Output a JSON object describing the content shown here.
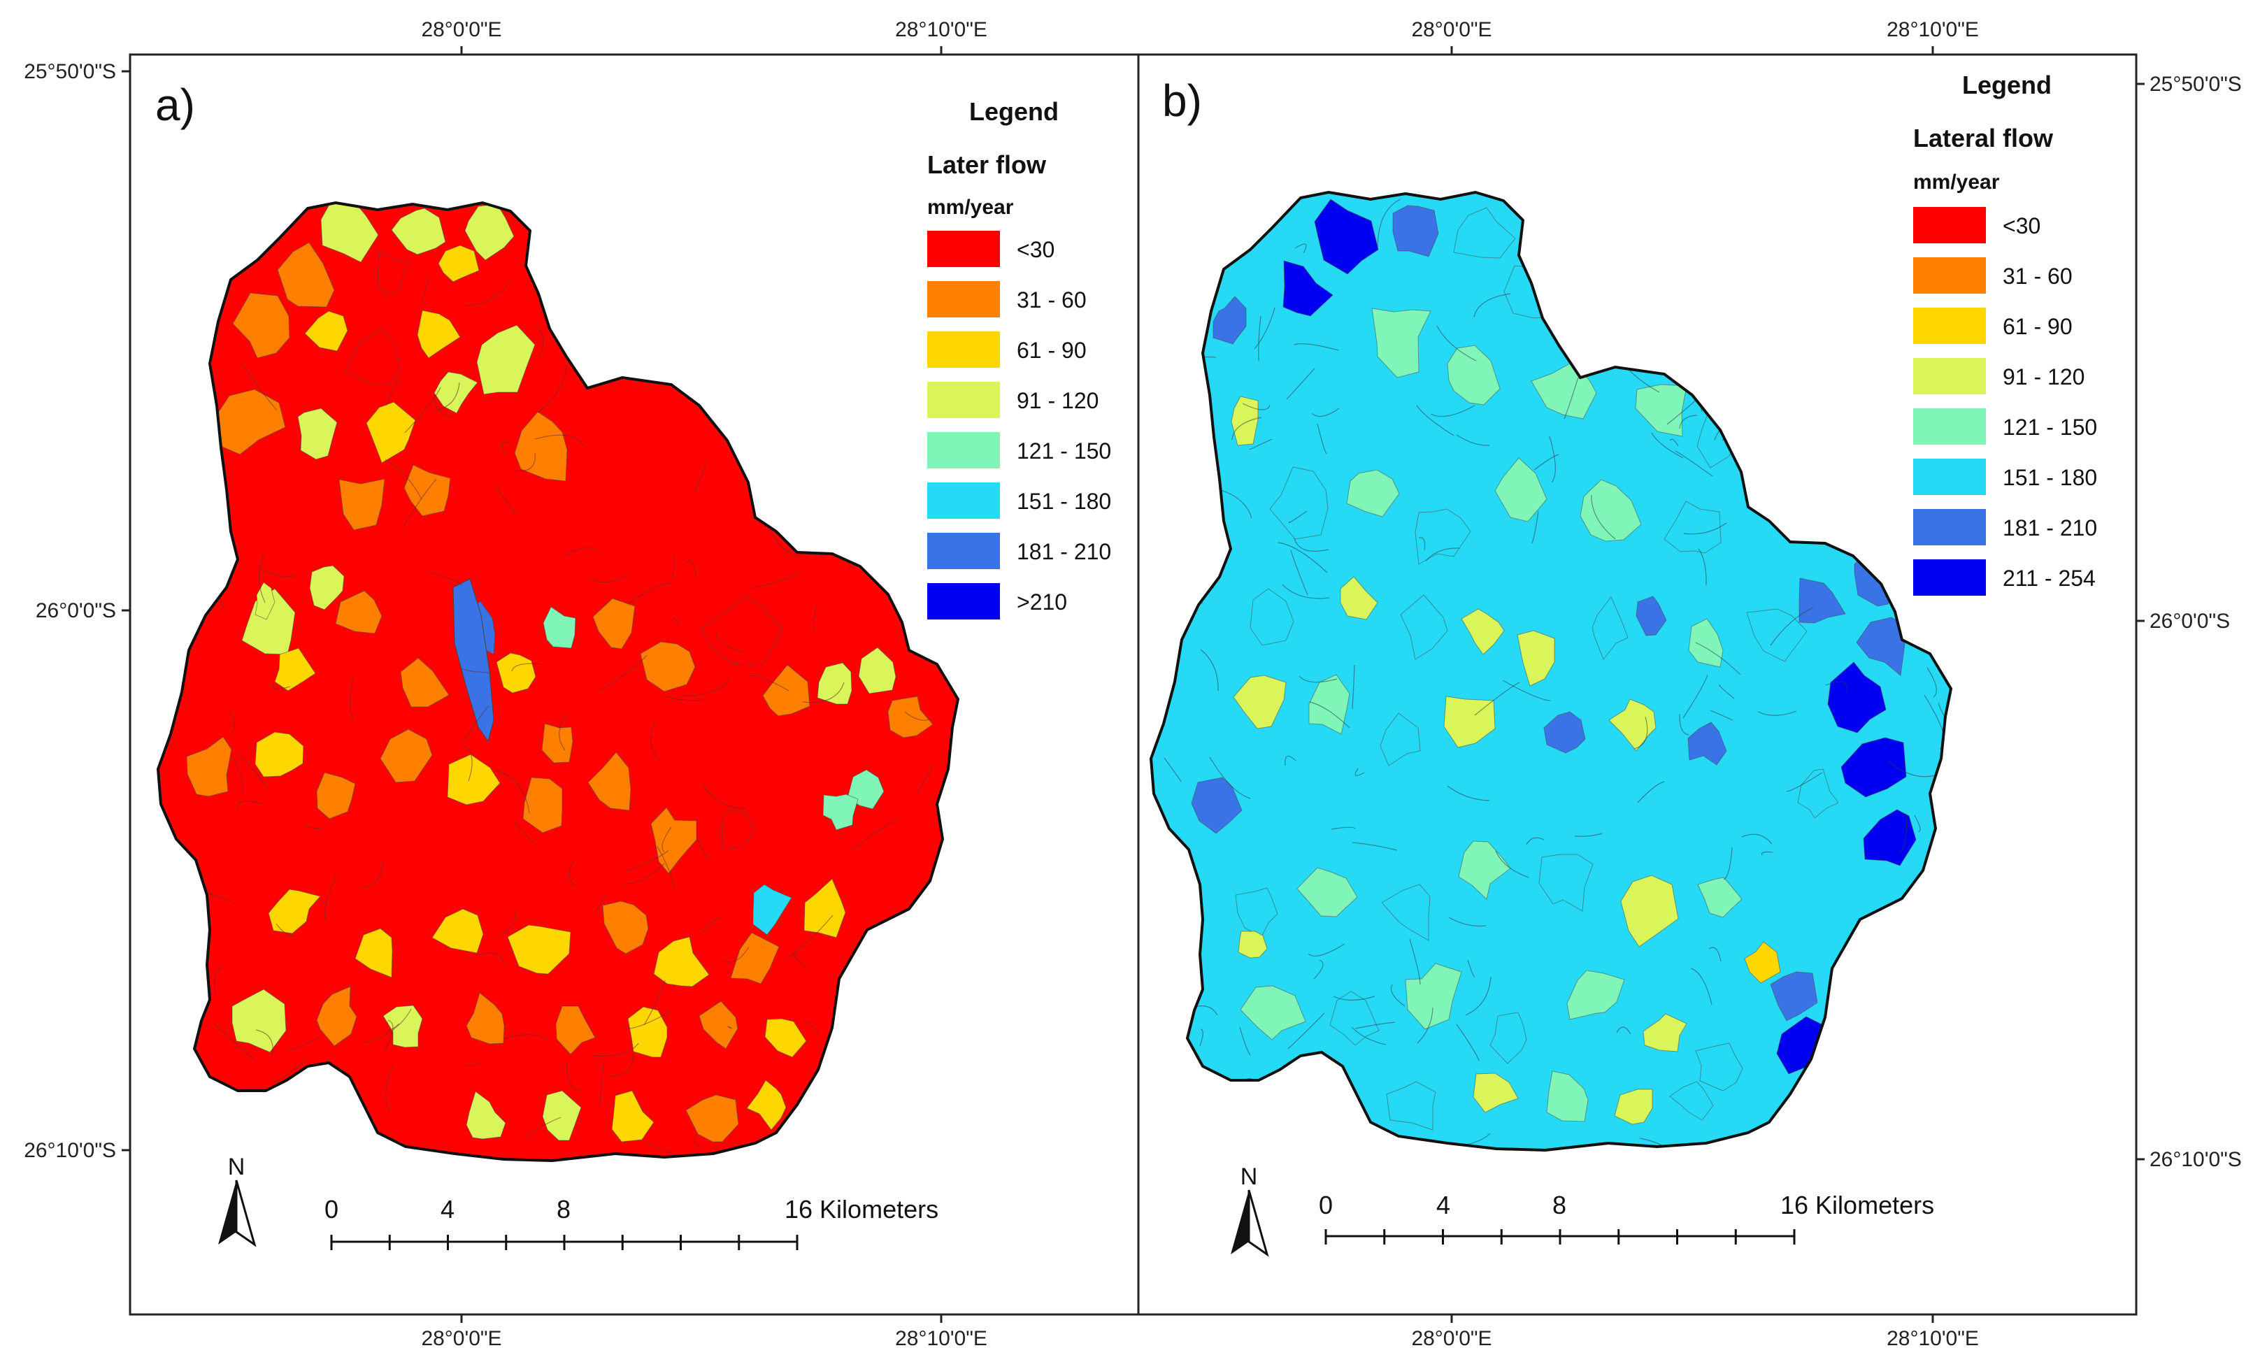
{
  "colors": {
    "class1": "#ff0000",
    "class2": "#ff8000",
    "class3": "#ffd700",
    "class4": "#d9f55a",
    "class5": "#80f5b8",
    "class6": "#26d9f5",
    "class7": "#3a73e6",
    "class8": "#0000f0",
    "boundary": "#222222"
  },
  "coords": {
    "top_lon_1": "28°0'0\"E",
    "top_lon_2": "28°10'0\"E",
    "top_lon_3": "28°0'0\"E",
    "top_lon_4": "28°10'0\"E",
    "bottom_lon_1": "28°0'0\"E",
    "bottom_lon_2": "28°10'0\"E",
    "bottom_lon_3": "28°0'0\"E",
    "bottom_lon_4": "28°10'0\"E",
    "left_lat_1": "25°50'0\"S",
    "left_lat_2": "26°0'0\"S",
    "left_lat_3": "26°10'0\"S",
    "right_lat_1": "25°50'0\"S",
    "right_lat_2": "26°0'0\"S",
    "right_lat_3": "26°10'0\"S"
  },
  "panel_a": {
    "label": "a)",
    "legend_title": "Legend",
    "legend_heading": "Later flow",
    "legend_unit": "mm/year",
    "legend_items": [
      "<30",
      "31 - 60",
      "61 - 90",
      "91 - 120",
      "121 - 150",
      "151 - 180",
      "181 - 210",
      ">210"
    ]
  },
  "panel_b": {
    "label": "b)",
    "legend_title": "Legend",
    "legend_heading": "Lateral flow",
    "legend_unit": "mm/year",
    "legend_items": [
      "<30",
      "31 - 60",
      "61 - 90",
      "91 - 120",
      "121 - 150",
      "151 - 180",
      "181 - 210",
      "211 - 254"
    ]
  },
  "scalebar": {
    "ticks": [
      "0",
      "4",
      "8",
      "16 Kilometers"
    ]
  },
  "north_arrow": "N"
}
